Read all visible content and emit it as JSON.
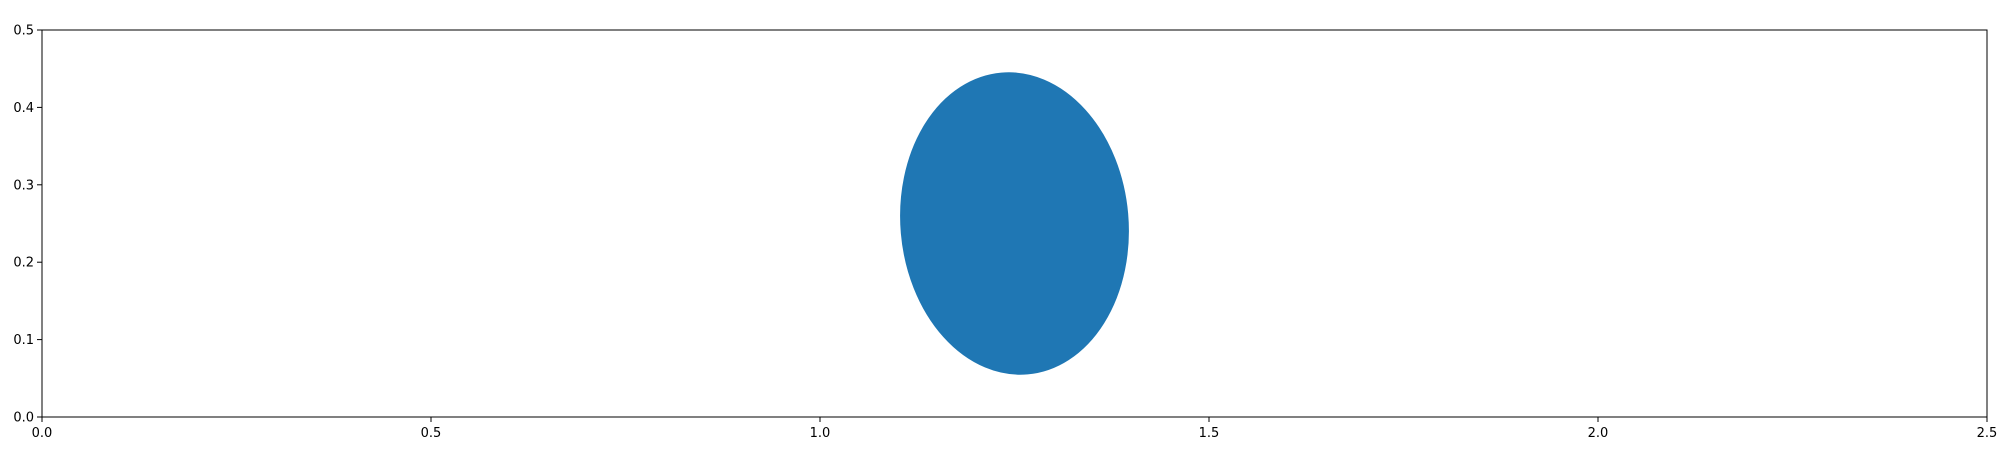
{
  "chart_data": {
    "type": "scatter",
    "title": "",
    "xlabel": "",
    "ylabel": "",
    "xlim": [
      0,
      2.5
    ],
    "ylim": [
      0,
      0.5
    ],
    "x_ticks": [
      "0.0",
      "0.5",
      "1.0",
      "1.5",
      "2.0",
      "2.5"
    ],
    "y_ticks": [
      "0.0",
      "0.1",
      "0.2",
      "0.3",
      "0.4",
      "0.5"
    ],
    "grid": false,
    "legend": "none",
    "series": [
      {
        "kind": "filled-ellipse",
        "color": "#1f77b4",
        "center": [
          1.25,
          0.25
        ],
        "semi_axis_x": 0.146,
        "semi_axis_y": 0.195,
        "rotation_deg": 5,
        "x_range": [
          1.105,
          1.395
        ],
        "y_range": [
          0.055,
          0.445
        ]
      }
    ]
  }
}
